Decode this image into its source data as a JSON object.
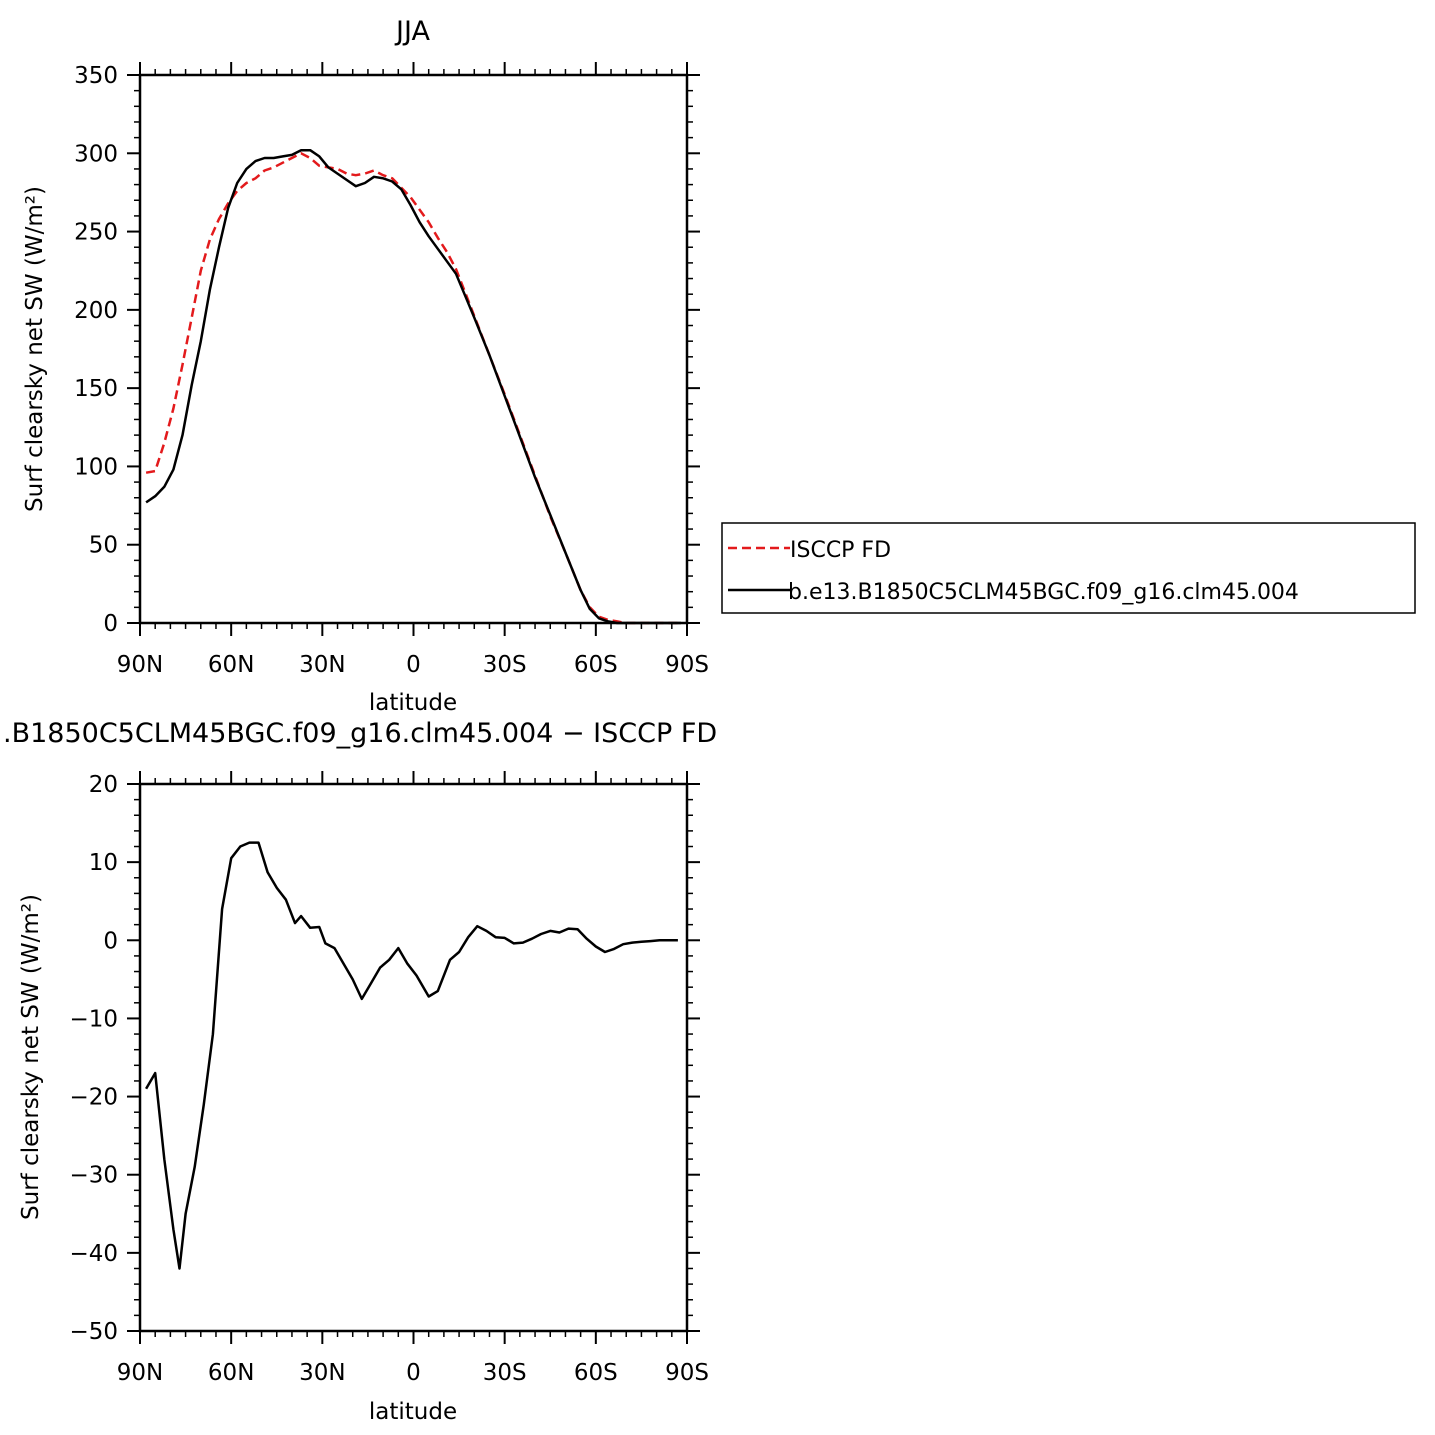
{
  "chart_data": [
    {
      "type": "line",
      "title": "JJA",
      "xlabel": "latitude",
      "ylabel": "Surf clearsky net SW (W/m²)",
      "xlim": [
        90,
        -90
      ],
      "ylim": [
        0,
        350
      ],
      "x_ticks": [
        90,
        60,
        30,
        0,
        -30,
        -60,
        -90
      ],
      "x_tick_labels": [
        "90N",
        "60N",
        "30N",
        "0",
        "30S",
        "60S",
        "90S"
      ],
      "y_ticks": [
        0,
        50,
        100,
        150,
        200,
        250,
        300,
        350
      ],
      "y_tick_labels": [
        "0",
        "50",
        "100",
        "150",
        "200",
        "250",
        "300",
        "350"
      ],
      "legend": {
        "placement": "right",
        "entries": [
          "ISCCP FD",
          "b.e13.B1850C5CLM45BGC.f09_g16.clm45.004"
        ]
      },
      "series": [
        {
          "name": "ISCCP FD",
          "color": "#e31a1c",
          "style": "dashed",
          "x": [
            88,
            85,
            82,
            79,
            76,
            73,
            70,
            67,
            64,
            61,
            58,
            55,
            52,
            49,
            46,
            43,
            40,
            37,
            34,
            31,
            28,
            25,
            22,
            19,
            16,
            13,
            10,
            7,
            4,
            1,
            -2,
            -5,
            -8,
            -11,
            -14,
            -17,
            -20,
            -25,
            -30,
            -35,
            -40,
            -45,
            -50,
            -55,
            -58,
            -61,
            -64,
            -67,
            -70,
            -73,
            -76,
            -79,
            -82,
            -85,
            -88
          ],
          "y": [
            96,
            97,
            115,
            137,
            165,
            195,
            225,
            245,
            258,
            268,
            276,
            281,
            284,
            289,
            291,
            294,
            297,
            300,
            297,
            292,
            291,
            290,
            287,
            286,
            287,
            289,
            286,
            284,
            278,
            272,
            264,
            256,
            246,
            237,
            226,
            211,
            196,
            171,
            146,
            120,
            94,
            68,
            45,
            21,
            10,
            4,
            2,
            1,
            0,
            0,
            0,
            0,
            0,
            0,
            0
          ]
        },
        {
          "name": "b.e13.B1850C5CLM45BGC.f09_g16.clm45.004",
          "color": "#000000",
          "style": "solid",
          "x": [
            88,
            85,
            82,
            79,
            76,
            73,
            70,
            67,
            64,
            61,
            58,
            55,
            52,
            49,
            46,
            43,
            40,
            37,
            34,
            31,
            28,
            25,
            22,
            19,
            16,
            13,
            10,
            7,
            4,
            1,
            -2,
            -5,
            -8,
            -11,
            -14,
            -17,
            -20,
            -25,
            -30,
            -35,
            -40,
            -45,
            -50,
            -55,
            -58,
            -61,
            -64,
            -67,
            -70,
            -73,
            -76,
            -79,
            -82,
            -85,
            -88
          ],
          "y": [
            77,
            81,
            87,
            98,
            120,
            152,
            180,
            213,
            240,
            265,
            281,
            290,
            295,
            297,
            297,
            298,
            299,
            302,
            302,
            298,
            291,
            287,
            283,
            279,
            281,
            285,
            284,
            282,
            277,
            267,
            256,
            247,
            239,
            231,
            223,
            209,
            195,
            171,
            145,
            119,
            93,
            69,
            45,
            21,
            9,
            3,
            1,
            0,
            0,
            0,
            0,
            0,
            0,
            0,
            0
          ]
        }
      ]
    },
    {
      "type": "line",
      "title": ".B1850C5CLM45BGC.f09_g16.clm45.004 − ISCCP FD",
      "xlabel": "latitude",
      "ylabel": "Surf clearsky net SW (W/m²)",
      "xlim": [
        90,
        -90
      ],
      "ylim": [
        -50,
        20
      ],
      "x_ticks": [
        90,
        60,
        30,
        0,
        -30,
        -60,
        -90
      ],
      "x_tick_labels": [
        "90N",
        "60N",
        "30N",
        "0",
        "30S",
        "60S",
        "90S"
      ],
      "y_ticks": [
        -50,
        -40,
        -30,
        -20,
        -10,
        0,
        10,
        20
      ],
      "y_tick_labels": [
        "−50",
        "−40",
        "−30",
        "−20",
        "−10",
        "0",
        "10",
        "20"
      ],
      "series": [
        {
          "color": "#000000",
          "style": "solid",
          "x": [
            88,
            85,
            82,
            79,
            77,
            75,
            72,
            69,
            66,
            63,
            60,
            57,
            54,
            51,
            48,
            45,
            42,
            39,
            37,
            34,
            31,
            29,
            26,
            23,
            20,
            17,
            14,
            11,
            8,
            5,
            2,
            -1,
            -5,
            -8,
            -12,
            -15,
            -18,
            -21,
            -24,
            -27,
            -30,
            -33,
            -36,
            -39,
            -42,
            -45,
            -48,
            -51,
            -54,
            -57,
            -60,
            -63,
            -66,
            -69,
            -72,
            -75,
            -78,
            -81,
            -84,
            -87
          ],
          "y": [
            -19,
            -17,
            -28,
            -37,
            -42,
            -35,
            -29,
            -21,
            -12,
            4,
            10.5,
            12,
            12.5,
            12.5,
            8.7,
            6.7,
            5.2,
            2.2,
            3.1,
            1.6,
            1.7,
            -0.4,
            -1,
            -3,
            -5,
            -7.5,
            -5.5,
            -3.5,
            -2.5,
            -1,
            -3,
            -4.5,
            -7.2,
            -6.5,
            -2.5,
            -1.5,
            0.4,
            1.8,
            1.2,
            0.4,
            0.3,
            -0.4,
            -0.3,
            0.2,
            0.8,
            1.2,
            1,
            1.5,
            1.4,
            0.2,
            -0.8,
            -1.5,
            -1.1,
            -0.5,
            -0.3,
            -0.2,
            -0.1,
            0,
            0,
            0
          ]
        }
      ]
    }
  ]
}
